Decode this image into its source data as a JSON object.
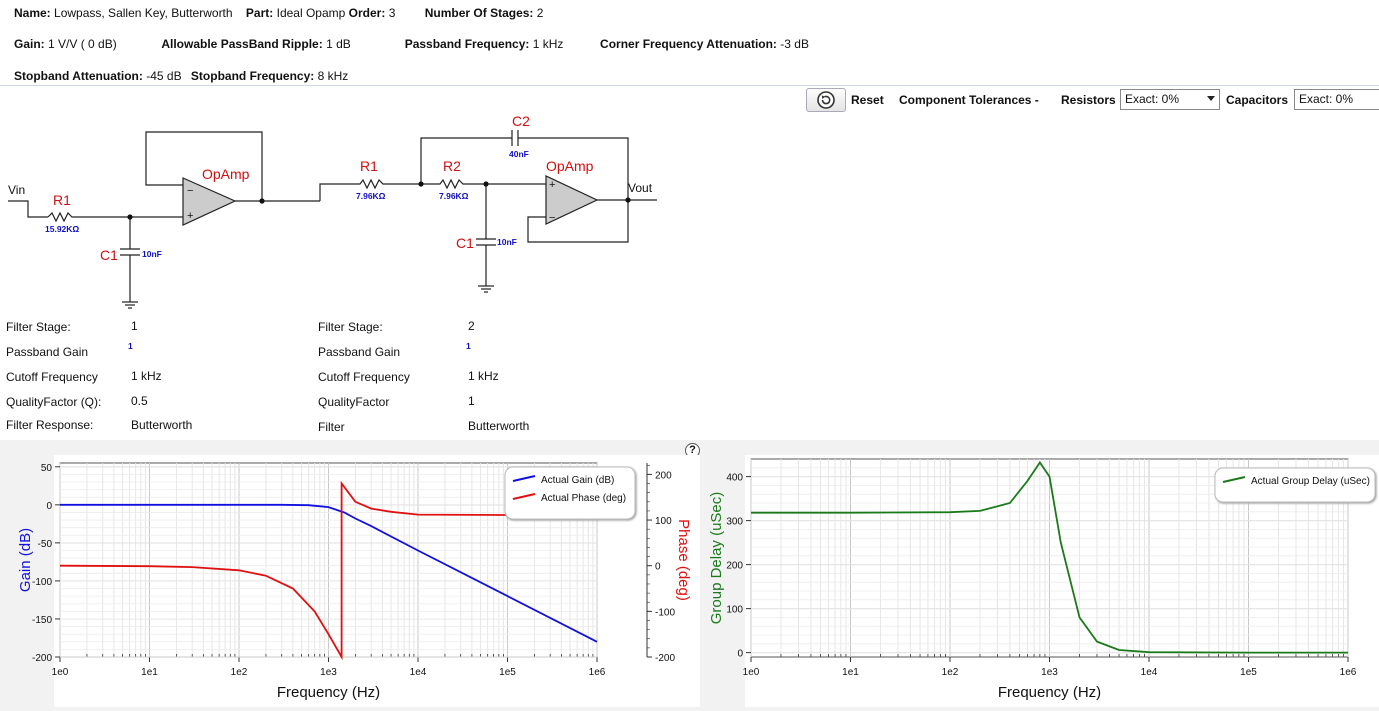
{
  "header": {
    "name_label": "Name:",
    "name_value": "Lowpass, Sallen Key, Butterworth",
    "part_label": "Part:",
    "part_value": "Ideal Opamp",
    "order_label": "Order:",
    "order_value": "3",
    "stages_label": "Number Of Stages:",
    "stages_value": "2",
    "gain_label": "Gain:",
    "gain_value": "1 V/V ( 0 dB)",
    "ripple_label": "Allowable PassBand Ripple:",
    "ripple_value": "1 dB",
    "passfreq_label": "Passband Frequency:",
    "passfreq_value": "1 kHz",
    "corner_label": "Corner Frequency Attenuation:",
    "corner_value": "-3 dB",
    "stopatt_label": "Stopband Attenuation:",
    "stopatt_value": "-45 dB",
    "stopfreq_label": "Stopband Frequency:",
    "stopfreq_value": "8 kHz"
  },
  "toolbar": {
    "reset_label": "Reset",
    "tolerances_label": "Component Tolerances -",
    "resistors_label": "Resistors",
    "resistors_value": "Exact: 0%",
    "capacitors_label": "Capacitors",
    "capacitors_value": "Exact: 0%"
  },
  "circuit": {
    "vin": "Vin",
    "vout": "Vout",
    "stage1": {
      "r1": "R1",
      "r1_val": "15.92KΩ",
      "c1": "C1",
      "c1_val": "10nF",
      "opamp": "OpAmp"
    },
    "stage2": {
      "r1": "R1",
      "r1_val": "7.96KΩ",
      "r2": "R2",
      "r2_val": "7.96KΩ",
      "c1": "C1",
      "c1_val": "10nF",
      "c2": "C2",
      "c2_val": "40nF",
      "opamp": "OpAmp"
    },
    "minus": "−",
    "plus": "+"
  },
  "stage_info": {
    "s1": {
      "stage_label": "Filter Stage:",
      "stage_value": "1",
      "gain_label": "Passband Gain",
      "gain_value": "1",
      "cutoff_label": "Cutoff Frequency",
      "cutoff_value": "1 kHz",
      "q_label": "QualityFactor (Q):",
      "q_value": "0.5",
      "resp_label": "Filter Response:",
      "resp_value": "Butterworth"
    },
    "s2": {
      "stage_label": "Filter Stage:",
      "stage_value": "2",
      "gain_label": "Passband Gain",
      "gain_value": "1",
      "cutoff_label": "Cutoff Frequency",
      "cutoff_value": "1 kHz",
      "q_label": "QualityFactor",
      "q_value": "1",
      "resp_label": "Filter",
      "resp_value": "Butterworth"
    }
  },
  "help_label": "?",
  "chart_data": [
    {
      "type": "line",
      "title": "",
      "xlabel": "Frequency (Hz)",
      "ylabel": "Gain (dB)",
      "y2label": "Phase (deg)",
      "xscale": "log",
      "xlim": [
        1,
        1000000
      ],
      "ylim": [
        -200,
        55
      ],
      "y2lim": [
        -200,
        225
      ],
      "xticks": [
        "1e0",
        "1e1",
        "1e2",
        "1e3",
        "1e4",
        "1e5",
        "1e6"
      ],
      "yticks": [
        "50",
        "0",
        "-50",
        "-100",
        "-150",
        "-200"
      ],
      "y2ticks": [
        "200",
        "100",
        "0",
        "-100",
        "-200"
      ],
      "legend": [
        "Actual Gain (dB)",
        "Actual Phase (deg)"
      ],
      "legend_position": "top-right",
      "series": [
        {
          "name": "Actual Gain (dB)",
          "color": "#1010e0",
          "axis": "left",
          "x": [
            1,
            10,
            100,
            300,
            600,
            1000,
            1500,
            2000,
            3000,
            10000,
            100000,
            1000000
          ],
          "y": [
            0,
            0,
            0,
            0,
            -0.5,
            -3,
            -10,
            -18,
            -28,
            -60,
            -120,
            -180
          ]
        },
        {
          "name": "Actual Phase (deg)",
          "color": "#e01010",
          "axis": "right",
          "x": [
            1,
            10,
            30,
            100,
            200,
            400,
            700,
            1000,
            1400,
            1400.1,
            2000,
            3000,
            5000,
            10000,
            100000,
            1000000
          ],
          "y": [
            0,
            -1,
            -3,
            -10,
            -22,
            -50,
            -100,
            -150,
            -200,
            180,
            140,
            125,
            118,
            112,
            111,
            111
          ]
        }
      ]
    },
    {
      "type": "line",
      "title": "",
      "xlabel": "Frequency (Hz)",
      "ylabel": "Group Delay (uSec)",
      "xscale": "log",
      "xlim": [
        1,
        1000000
      ],
      "ylim": [
        -10,
        440
      ],
      "xticks": [
        "1e0",
        "1e1",
        "1e2",
        "1e3",
        "1e4",
        "1e5",
        "1e6"
      ],
      "yticks": [
        "400",
        "300",
        "200",
        "100",
        "0"
      ],
      "legend": [
        "Actual Group Delay (uSec)"
      ],
      "legend_position": "top-right",
      "series": [
        {
          "name": "Actual Group Delay (uSec)",
          "color": "#1a7a1a",
          "x": [
            1,
            10,
            100,
            200,
            400,
            600,
            800,
            1000,
            1300,
            2000,
            3000,
            5000,
            10000,
            100000,
            1000000
          ],
          "y": [
            318,
            318,
            319,
            322,
            340,
            390,
            432,
            400,
            250,
            80,
            25,
            6,
            1,
            0,
            0
          ]
        }
      ]
    }
  ]
}
